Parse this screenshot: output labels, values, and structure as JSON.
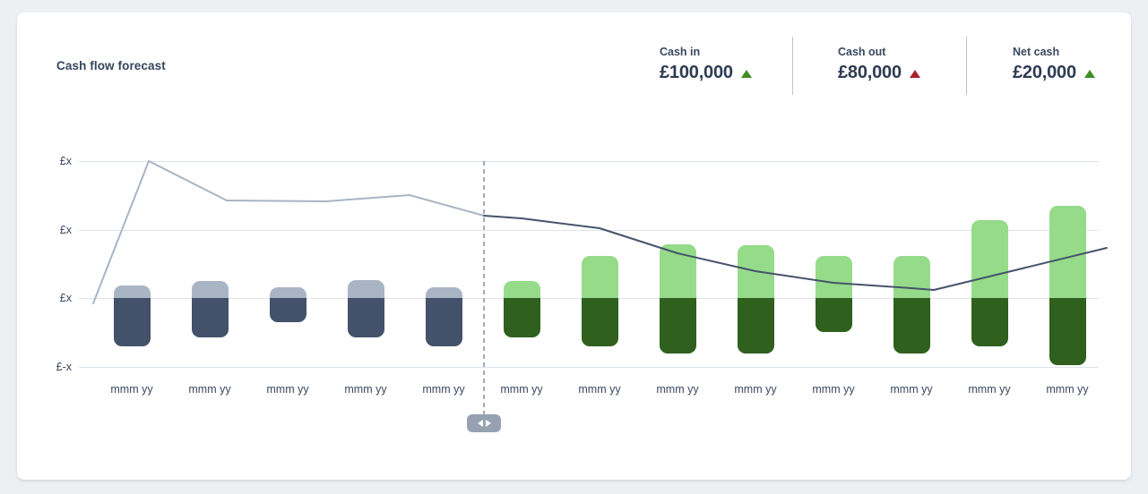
{
  "card": {
    "title": "Cash flow forecast"
  },
  "stats": [
    {
      "id": "cash-in",
      "label": "Cash in",
      "value": "£100,000",
      "trend": "up",
      "trend_color": "#3f8d26"
    },
    {
      "id": "cash-out",
      "label": "Cash out",
      "value": "£80,000",
      "trend": "up",
      "trend_color": "#a8222b"
    },
    {
      "id": "net-cash",
      "label": "Net cash",
      "value": "£20,000",
      "trend": "up",
      "trend_color": "#3f8d26"
    }
  ],
  "chart_data": {
    "type": "bar",
    "title": "Cash flow forecast",
    "y_tick_labels": [
      "£x",
      "£x",
      "£x",
      "£-x"
    ],
    "zero_gridline_index": 2,
    "x_tick_labels": [
      "mmm yy",
      "mmm yy",
      "mmm yy",
      "mmm yy",
      "mmm yy",
      "mmm yy",
      "mmm yy",
      "mmm yy",
      "mmm yy",
      "mmm yy",
      "mmm yy",
      "mmm yy",
      "mmm yy"
    ],
    "forecast_divider_after_index": 4,
    "note": "values are in axis-grid units (1 unit = one gridline step, placeholder axis labels £x); cash_in plotted above zero line, cash_out below",
    "bars": [
      {
        "period": "actual",
        "cash_in": 0.183,
        "cash_out": 0.706
      },
      {
        "period": "actual",
        "cash_in": 0.248,
        "cash_out": 0.575
      },
      {
        "period": "actual",
        "cash_in": 0.157,
        "cash_out": 0.353
      },
      {
        "period": "actual",
        "cash_in": 0.261,
        "cash_out": 0.575
      },
      {
        "period": "actual",
        "cash_in": 0.157,
        "cash_out": 0.706
      },
      {
        "period": "forecast",
        "cash_in": 0.248,
        "cash_out": 0.575
      },
      {
        "period": "forecast",
        "cash_in": 0.614,
        "cash_out": 0.706
      },
      {
        "period": "forecast",
        "cash_in": 0.784,
        "cash_out": 0.81
      },
      {
        "period": "forecast",
        "cash_in": 0.771,
        "cash_out": 0.81
      },
      {
        "period": "forecast",
        "cash_in": 0.614,
        "cash_out": 0.497
      },
      {
        "period": "forecast",
        "cash_in": 0.614,
        "cash_out": 0.81
      },
      {
        "period": "forecast",
        "cash_in": 1.137,
        "cash_out": 0.706
      },
      {
        "period": "forecast",
        "cash_in": 1.346,
        "cash_out": 0.98
      }
    ],
    "lines": [
      {
        "name": "balance-actual",
        "color": "#a9b4c4",
        "points": [
          [
            -0.494,
            -0.078
          ],
          [
            0.218,
            2.0
          ],
          [
            1.218,
            1.425
          ],
          [
            2.483,
            1.412
          ],
          [
            3.563,
            1.503
          ],
          [
            4.517,
            1.203
          ]
        ]
      },
      {
        "name": "balance-forecast",
        "color": "#46536b",
        "points": [
          [
            4.517,
            1.203
          ],
          [
            5.0,
            1.163
          ],
          [
            6.0,
            1.02
          ],
          [
            7.0,
            0.654
          ],
          [
            8.0,
            0.392
          ],
          [
            9.0,
            0.222
          ],
          [
            10.0,
            0.144
          ],
          [
            10.287,
            0.118
          ],
          [
            12.506,
            0.732
          ]
        ]
      }
    ],
    "colors": {
      "actual_cash_in": "#a9b5c5",
      "actual_cash_out": "#44516a",
      "forecast_cash_in": "#95db8a",
      "forecast_cash_out": "#2f601d",
      "gridline": "#dee4eb",
      "forecast_divider": "#9fabbb",
      "handle": "#96a2b1"
    }
  }
}
